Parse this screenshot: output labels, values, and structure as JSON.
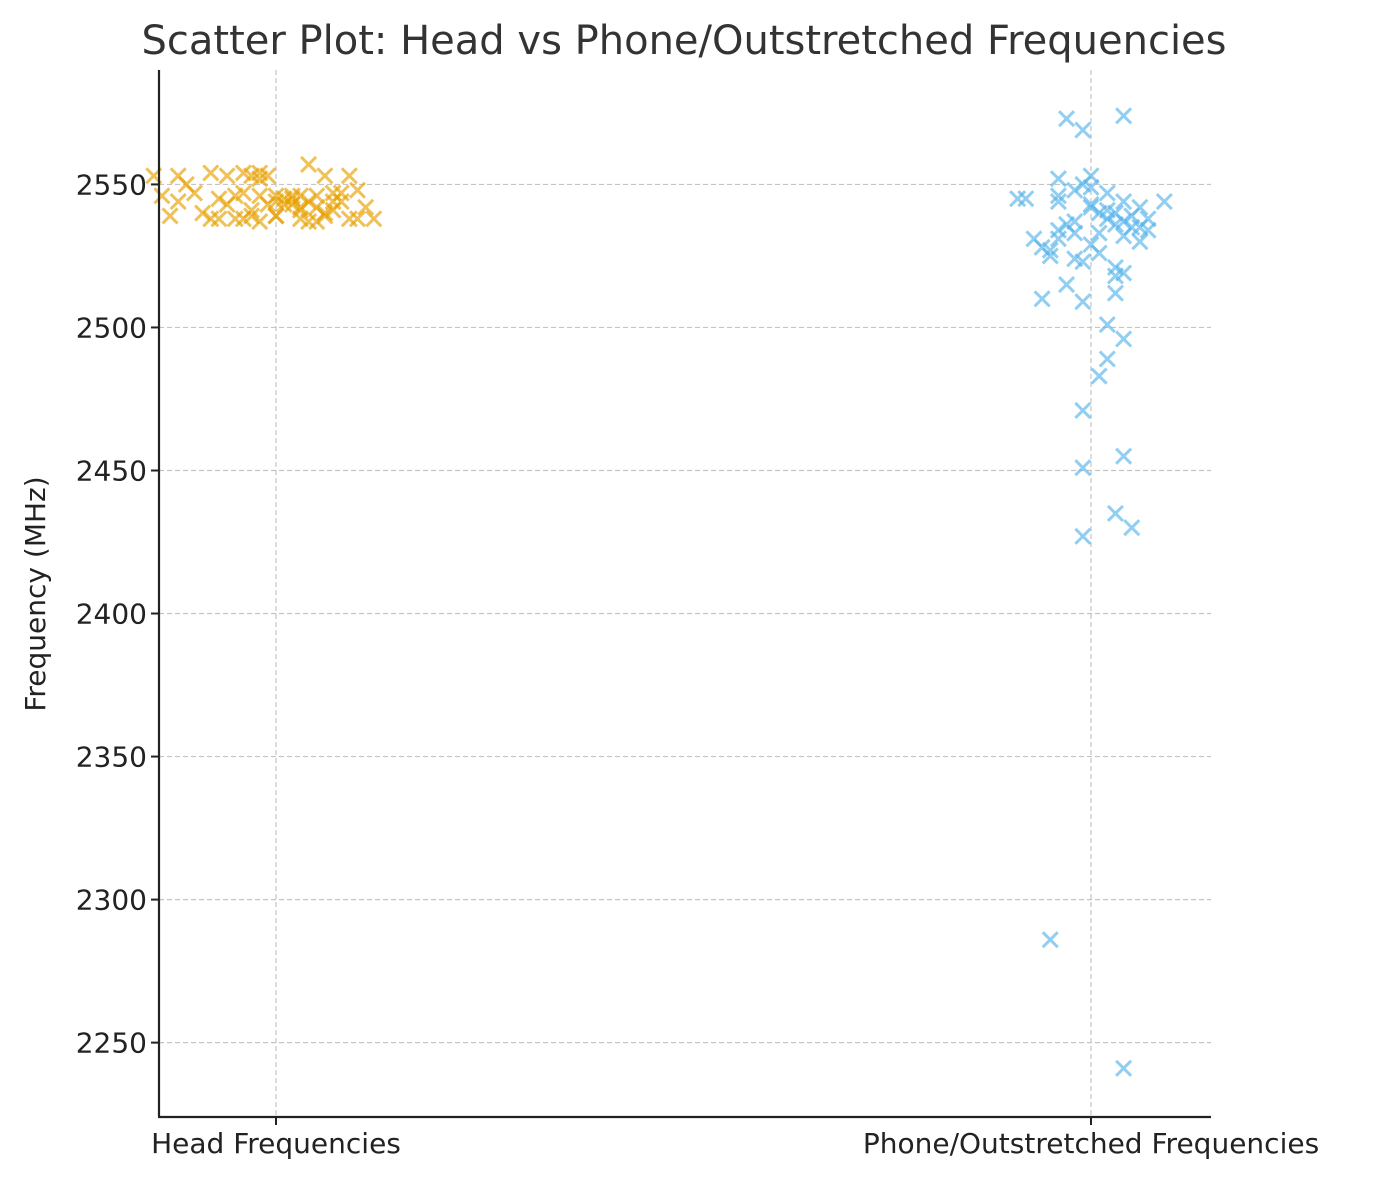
{
  "chart_data": {
    "type": "scatter",
    "title": "Scatter Plot: Head vs Phone/Outstretched Frequencies",
    "xlabel": "",
    "ylabel": "Frequency (MHz)",
    "categories": [
      "Head Frequencies",
      "Phone/Outstretched Frequencies"
    ],
    "ylim": [
      2224,
      2590
    ],
    "yticks": [
      2250,
      2300,
      2350,
      2400,
      2450,
      2500,
      2550
    ],
    "grid": true,
    "marker": "x",
    "series": [
      {
        "color": "#E69F00",
        "category_index": 0,
        "values": [
          2553,
          2546,
          2539,
          2544,
          2553,
          2547,
          2540,
          2554,
          2545,
          2538,
          2553,
          2546,
          2538,
          2554,
          2547,
          2539,
          2541,
          2554,
          2546,
          2537,
          2543,
          2553,
          2546,
          2539,
          2543,
          2545,
          2557,
          2541,
          2538,
          2546,
          2544,
          2537,
          2553,
          2539,
          2544,
          2553,
          2538,
          2548,
          2542,
          2538,
          2542,
          2544,
          2547,
          2538,
          2545,
          2539,
          2552,
          2537,
          2546,
          2540,
          2543,
          2538,
          2542,
          2547,
          2550,
          2543,
          2546,
          2538,
          2541,
          2553,
          2544
        ],
        "jitter": [
          -0.15,
          -0.14,
          -0.13,
          -0.12,
          -0.12,
          -0.1,
          -0.09,
          -0.08,
          -0.07,
          -0.07,
          -0.06,
          -0.05,
          -0.05,
          -0.04,
          -0.04,
          -0.03,
          -0.03,
          -0.02,
          -0.02,
          -0.02,
          -0.01,
          -0.01,
          0.0,
          0.0,
          0.01,
          0.02,
          0.04,
          0.03,
          0.03,
          0.02,
          0.04,
          0.05,
          0.06,
          0.06,
          0.08,
          0.09,
          0.09,
          0.1,
          0.11,
          0.12,
          0.05,
          0.07,
          0.08,
          0.1,
          0.01,
          0.0,
          -0.02,
          0.04,
          0.05,
          0.06,
          -0.06,
          -0.08,
          0.03,
          0.07,
          -0.11,
          0.02,
          0.03,
          -0.04,
          0.07,
          -0.03,
          0.0
        ]
      },
      {
        "color": "#56B4E9",
        "category_index": 1,
        "values": [
          2574,
          2573,
          2569,
          2553,
          2552,
          2550,
          2548,
          2547,
          2545,
          2545,
          2544,
          2544,
          2544,
          2543,
          2542,
          2541,
          2540,
          2539,
          2538,
          2537,
          2537,
          2536,
          2535,
          2535,
          2534,
          2533,
          2532,
          2531,
          2531,
          2530,
          2529,
          2528,
          2527,
          2526,
          2525,
          2524,
          2523,
          2521,
          2519,
          2518,
          2515,
          2512,
          2510,
          2509,
          2501,
          2496,
          2489,
          2483,
          2471,
          2455,
          2451,
          2435,
          2430,
          2427,
          2286,
          2241,
          2549,
          2538,
          2533,
          2540,
          2536,
          2546,
          2542,
          2534
        ],
        "jitter": [
          0.04,
          -0.03,
          -0.01,
          0.0,
          -0.04,
          -0.01,
          -0.02,
          0.02,
          -0.09,
          -0.08,
          -0.04,
          0.09,
          0.04,
          0.0,
          0.06,
          0.02,
          0.03,
          0.05,
          0.07,
          -0.02,
          0.04,
          -0.03,
          0.05,
          0.06,
          -0.04,
          0.01,
          0.04,
          -0.07,
          -0.04,
          0.06,
          0.0,
          -0.06,
          -0.05,
          0.01,
          -0.05,
          -0.02,
          -0.01,
          0.03,
          0.04,
          0.03,
          -0.03,
          0.03,
          -0.06,
          -0.01,
          0.02,
          0.04,
          0.02,
          0.01,
          -0.01,
          0.04,
          -0.01,
          0.03,
          0.05,
          -0.01,
          -0.05,
          0.04,
          0.0,
          0.02,
          -0.02,
          0.01,
          0.03,
          -0.04,
          0.0,
          0.07
        ]
      }
    ]
  }
}
